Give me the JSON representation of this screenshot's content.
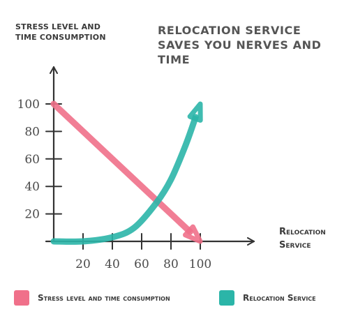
{
  "chart_data": {
    "type": "line",
    "title": "RELOCATION SERVICE SAVES YOU NERVES AND TIME",
    "ylabel": "STRESS LEVEL AND TIME CONSUMPTION",
    "xlabel": "Relocation Service",
    "x_ticks": [
      "20",
      "40",
      "60",
      "80",
      "100"
    ],
    "y_ticks": [
      "20",
      "40",
      "60",
      "80",
      "100"
    ],
    "xlim": [
      0,
      110
    ],
    "ylim": [
      0,
      110
    ],
    "grid": false,
    "legend_position": "bottom",
    "series": [
      {
        "name": "Stress level and time consumption",
        "color": "#f0708a",
        "x": [
          0,
          100
        ],
        "y": [
          100,
          0
        ]
      },
      {
        "name": "Relocation Service",
        "color": "#2bb5a8",
        "x": [
          0,
          20,
          40,
          55,
          70,
          80,
          90,
          100
        ],
        "y": [
          0,
          0,
          3,
          10,
          28,
          45,
          70,
          100
        ]
      }
    ]
  },
  "legend": [
    {
      "label": "Stress level and time consumption",
      "color": "#f0708a"
    },
    {
      "label": "Relocation Service",
      "color": "#2bb5a8"
    }
  ]
}
